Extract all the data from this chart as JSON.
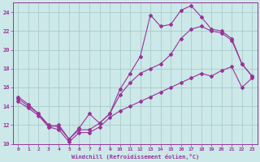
{
  "xlabel": "Windchill (Refroidissement éolien,°C)",
  "ylabel": "",
  "bg_color": "#cce8e8",
  "grid_color": "#aacccc",
  "line_color": "#993399",
  "xlim": [
    -0.5,
    23.5
  ],
  "ylim": [
    10,
    25
  ],
  "xticks": [
    0,
    1,
    2,
    3,
    4,
    5,
    6,
    7,
    8,
    9,
    10,
    11,
    12,
    13,
    14,
    15,
    16,
    17,
    18,
    19,
    20,
    21,
    22,
    23
  ],
  "yticks": [
    10,
    12,
    14,
    16,
    18,
    20,
    22,
    24
  ],
  "line1_x": [
    0,
    1,
    2,
    3,
    4,
    5,
    6,
    7,
    8,
    9,
    10,
    11,
    12,
    13,
    14,
    15,
    16,
    17,
    18,
    19,
    20,
    21,
    22,
    23
  ],
  "line1_y": [
    15.0,
    14.2,
    13.2,
    11.8,
    12.0,
    10.5,
    11.7,
    13.2,
    12.2,
    13.2,
    15.8,
    17.5,
    19.3,
    23.7,
    22.5,
    22.7,
    24.2,
    24.7,
    23.5,
    22.2,
    22.0,
    21.2,
    18.5,
    17.2
  ],
  "line2_x": [
    0,
    1,
    2,
    3,
    4,
    5,
    6,
    7,
    8,
    9,
    10,
    11,
    12,
    13,
    14,
    15,
    16,
    17,
    18,
    19,
    20,
    21,
    22,
    23
  ],
  "line2_y": [
    14.8,
    14.0,
    13.2,
    12.0,
    11.8,
    10.5,
    11.5,
    11.5,
    12.2,
    13.2,
    15.2,
    16.5,
    17.5,
    18.0,
    18.5,
    19.5,
    21.2,
    22.2,
    22.5,
    22.0,
    21.8,
    21.0,
    18.5,
    17.2
  ],
  "line3_x": [
    0,
    1,
    2,
    3,
    4,
    5,
    6,
    7,
    8,
    9,
    10,
    11,
    12,
    13,
    14,
    15,
    16,
    17,
    18,
    19,
    20,
    21,
    22,
    23
  ],
  "line3_y": [
    14.5,
    13.8,
    13.0,
    11.8,
    11.5,
    10.2,
    11.2,
    11.2,
    11.8,
    12.8,
    13.5,
    14.0,
    14.5,
    15.0,
    15.5,
    16.0,
    16.5,
    17.0,
    17.5,
    17.2,
    17.8,
    18.2,
    16.0,
    17.0
  ]
}
